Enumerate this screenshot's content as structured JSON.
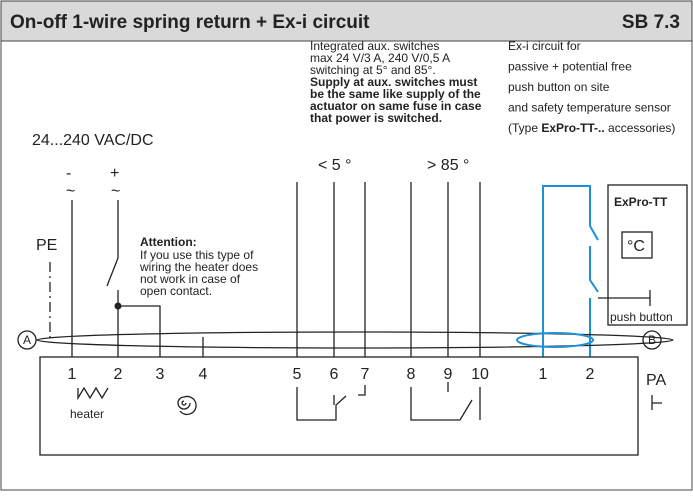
{
  "header": {
    "title": "On-off 1-wire spring return + Ex-i circuit",
    "code": "SB 7.3"
  },
  "supply": {
    "label": "24...240 VAC/DC",
    "minus": "-",
    "plus": "+",
    "ac": [
      "~",
      "~"
    ],
    "pe": "PE"
  },
  "attention": {
    "title": "Attention:",
    "lines": [
      "If you use this type of",
      "wiring the heater does",
      "not work in case of",
      "open contact."
    ]
  },
  "aux_note": {
    "lines": [
      "Integrated aux. switches",
      "max 24 V/3 A, 240 V/0,5 A",
      "switching at 5° and 85°."
    ],
    "bold_lines": [
      "Supply at aux. switches must",
      "be the same like supply of the",
      "actuator on same fuse in case",
      "that power is switched."
    ]
  },
  "switch_labels": [
    "< 5 °",
    "> 85 °"
  ],
  "exi_note": {
    "lines": [
      "Ex-i circuit for",
      "passive + potential free",
      "push button on site",
      "and safety temperature sensor"
    ],
    "last_prefix": "(Type ",
    "last_bold": "ExPro-TT-..",
    "last_suffix": " accessories)"
  },
  "expro": {
    "title": "ExPro-TT",
    "sensor": "°C",
    "button": "push button"
  },
  "markers": [
    "A",
    "B"
  ],
  "terminals": [
    "1",
    "2",
    "3",
    "4",
    "5",
    "6",
    "7",
    "8",
    "9",
    "10",
    "1",
    "2"
  ],
  "heater": "heater",
  "pa": "PA"
}
